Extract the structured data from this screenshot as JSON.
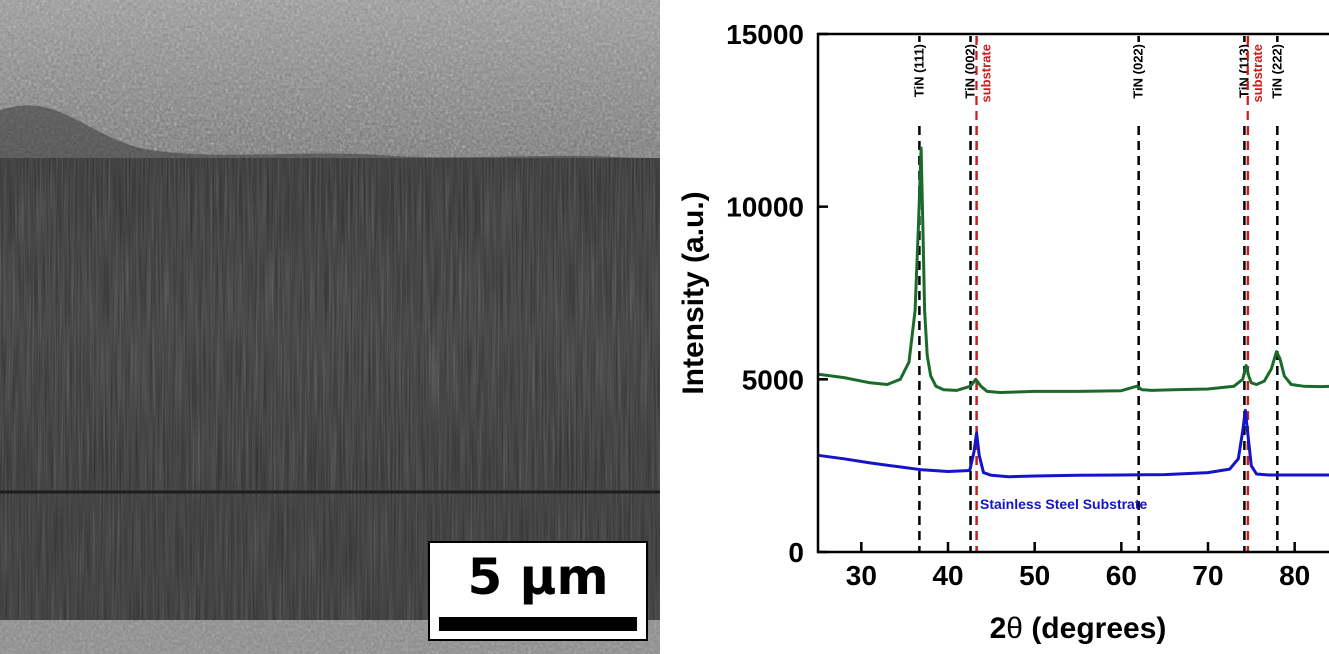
{
  "sem_image": {
    "scale_bar_label": "5 µm"
  },
  "chart_data": {
    "type": "line",
    "xlabel_prefix": "2",
    "xlabel_symbol": "θ",
    "xlabel_suffix": " (degrees)",
    "ylabel": "Intensity (a.u.)",
    "xlim": [
      25,
      85
    ],
    "ylim": [
      0,
      15000
    ],
    "xticks": [
      30,
      40,
      50,
      60,
      70,
      80
    ],
    "yticks": [
      0,
      5000,
      10000,
      15000
    ],
    "grid": false,
    "series": [
      {
        "color": "#1a6b2a",
        "x": [
          25,
          28,
          31,
          33,
          34.5,
          35.5,
          36.2,
          36.6,
          36.9,
          37.1,
          37.3,
          37.6,
          38,
          38.6,
          39.5,
          41,
          42.6,
          43.2,
          43.8,
          44.5,
          46,
          50,
          55,
          60,
          61.8,
          62.4,
          63.5,
          66,
          70,
          73,
          74,
          74.4,
          74.7,
          75,
          75.6,
          76.5,
          77.3,
          77.9,
          78.3,
          78.8,
          79.6,
          81,
          83,
          85
        ],
        "y": [
          5150,
          5050,
          4900,
          4850,
          5000,
          5500,
          7000,
          9500,
          11700,
          9400,
          7000,
          5700,
          5100,
          4800,
          4700,
          4680,
          4800,
          5000,
          4800,
          4650,
          4620,
          4650,
          4650,
          4670,
          4800,
          4700,
          4680,
          4700,
          4720,
          4800,
          5000,
          5400,
          5100,
          4900,
          4850,
          4950,
          5300,
          5800,
          5600,
          5100,
          4850,
          4800,
          4790,
          4800
        ]
      },
      {
        "name": "Stainless Steel Substrate",
        "color": "#1414c8",
        "x": [
          25,
          28,
          31,
          34,
          37,
          40,
          42.5,
          43.0,
          43.3,
          43.6,
          44.1,
          45,
          47,
          50,
          55,
          60,
          65,
          70,
          72.5,
          73.5,
          74.0,
          74.3,
          74.6,
          75.0,
          75.6,
          77,
          80,
          85
        ],
        "y": [
          2800,
          2700,
          2580,
          2480,
          2380,
          2330,
          2360,
          2900,
          3450,
          2800,
          2300,
          2220,
          2180,
          2200,
          2220,
          2230,
          2240,
          2300,
          2400,
          2700,
          3500,
          4100,
          3400,
          2500,
          2260,
          2230,
          2230,
          2230
        ]
      }
    ],
    "reference_lines": [
      {
        "x": 36.7,
        "label": "TiN (111)",
        "color": "#000000"
      },
      {
        "x": 42.6,
        "label": "TiN (002)",
        "color": "#000000"
      },
      {
        "x": 43.3,
        "label": "substrate",
        "color": "#c81e1e"
      },
      {
        "x": 62.0,
        "label": "TiN (022)",
        "color": "#000000"
      },
      {
        "x": 74.2,
        "label": "TiN (113)",
        "color": "#000000"
      },
      {
        "x": 74.6,
        "label": "substrate",
        "color": "#c81e1e"
      },
      {
        "x": 78.0,
        "label": "TiN (222)",
        "color": "#000000"
      }
    ]
  }
}
